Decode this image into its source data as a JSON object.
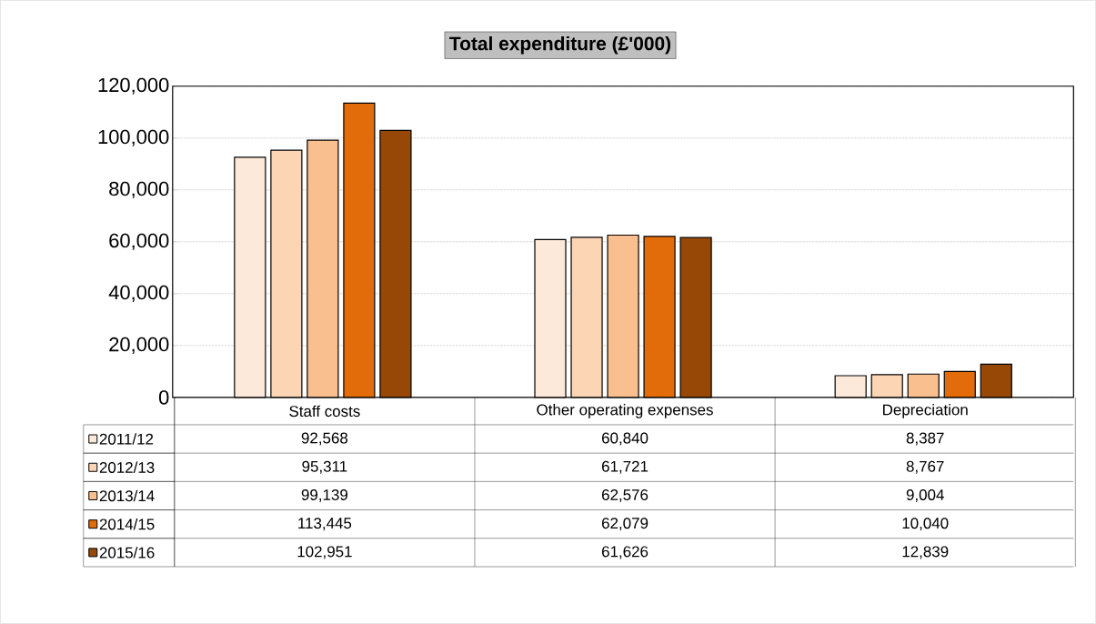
{
  "chart_data": {
    "type": "bar",
    "title": "Total expenditure (£'000)",
    "categories": [
      "Staff costs",
      "Other operating expenses",
      "Depreciation"
    ],
    "series": [
      {
        "name": "2011/12",
        "color": "#fde9d9",
        "values": [
          92568,
          60840,
          8387
        ],
        "value_labels": [
          "92,568",
          "60,840",
          "8,387"
        ]
      },
      {
        "name": "2012/13",
        "color": "#fcd5b4",
        "values": [
          95311,
          61721,
          8767
        ],
        "value_labels": [
          "95,311",
          "61,721",
          "8,767"
        ]
      },
      {
        "name": "2013/14",
        "color": "#fabf8f",
        "values": [
          99139,
          62576,
          9004
        ],
        "value_labels": [
          "99,139",
          "62,576",
          "9,004"
        ]
      },
      {
        "name": "2014/15",
        "color": "#e26b0a",
        "values": [
          113445,
          62079,
          10040
        ],
        "value_labels": [
          "113,445",
          "62,079",
          "10,040"
        ]
      },
      {
        "name": "2015/16",
        "color": "#974706",
        "values": [
          102951,
          61626,
          12839
        ],
        "value_labels": [
          "102,951",
          "61,626",
          "12,839"
        ]
      }
    ],
    "ylim": [
      0,
      120000
    ],
    "yticks": [
      0,
      {
        "value": 20000,
        "label": "20,000"
      },
      {
        "value": 40000,
        "label": "40,000"
      },
      {
        "value": 60000,
        "label": "60,000"
      },
      {
        "value": 80000,
        "label": "80,000"
      },
      {
        "value": 100000,
        "label": "100,000"
      },
      {
        "value": 120000,
        "label": "120,000"
      }
    ],
    "grid": "y",
    "legend": "bottom"
  }
}
